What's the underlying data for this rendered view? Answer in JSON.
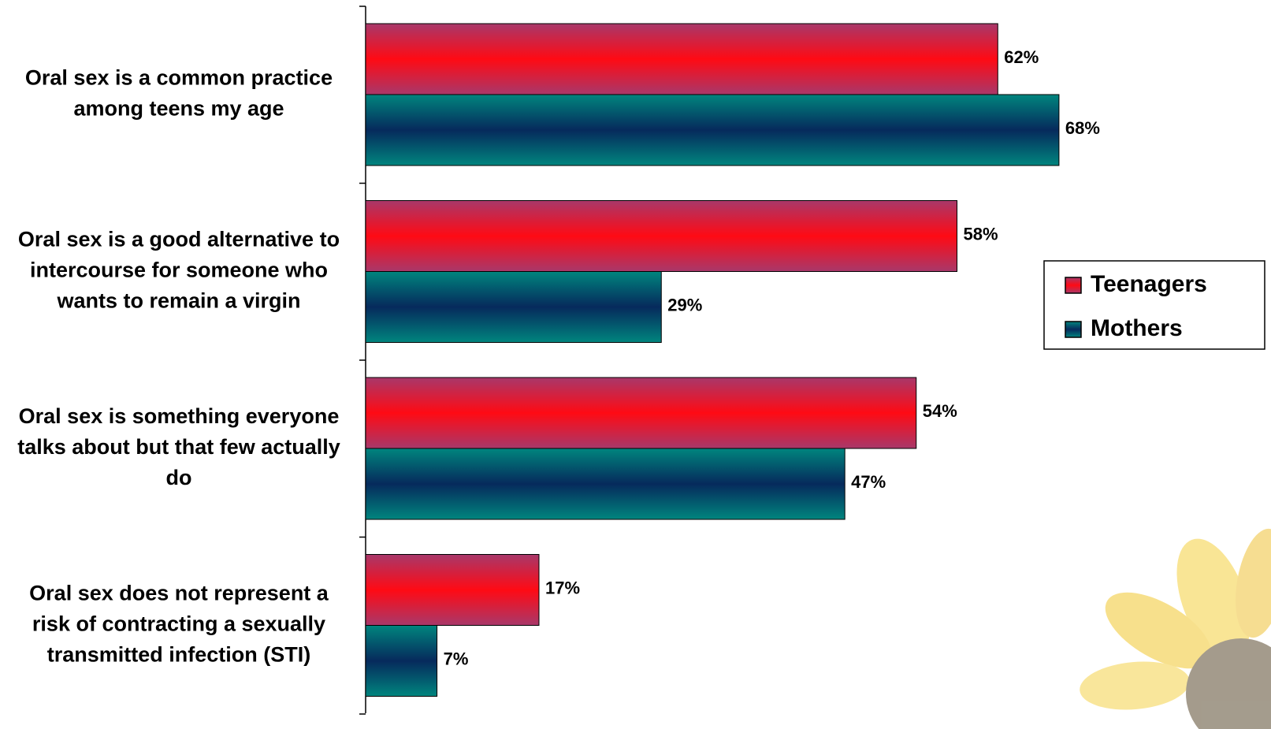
{
  "chart_data": {
    "type": "bar",
    "orientation": "horizontal",
    "categories": [
      [
        "Oral sex is a common practice",
        "among teens my age"
      ],
      [
        "Oral sex is a good alternative to",
        "intercourse for someone who",
        "wants to remain a virgin"
      ],
      [
        "Oral sex is something everyone",
        "talks about but that few actually",
        "do"
      ],
      [
        "Oral sex does not represent a",
        "risk of contracting a sexually",
        "transmitted infection (STI)"
      ]
    ],
    "series": [
      {
        "name": "Teenagers",
        "color": "#ff0a14",
        "edge_color": "#a8386a",
        "values": [
          62,
          58,
          54,
          17
        ],
        "value_labels": [
          "62%",
          "58%",
          "54%",
          "17%"
        ]
      },
      {
        "name": "Mothers",
        "color": "#062a5c",
        "edge_color": "#00857e",
        "values": [
          68,
          29,
          47,
          7
        ],
        "value_labels": [
          "68%",
          "29%",
          "47%",
          "7%"
        ]
      }
    ],
    "legend": "right"
  }
}
